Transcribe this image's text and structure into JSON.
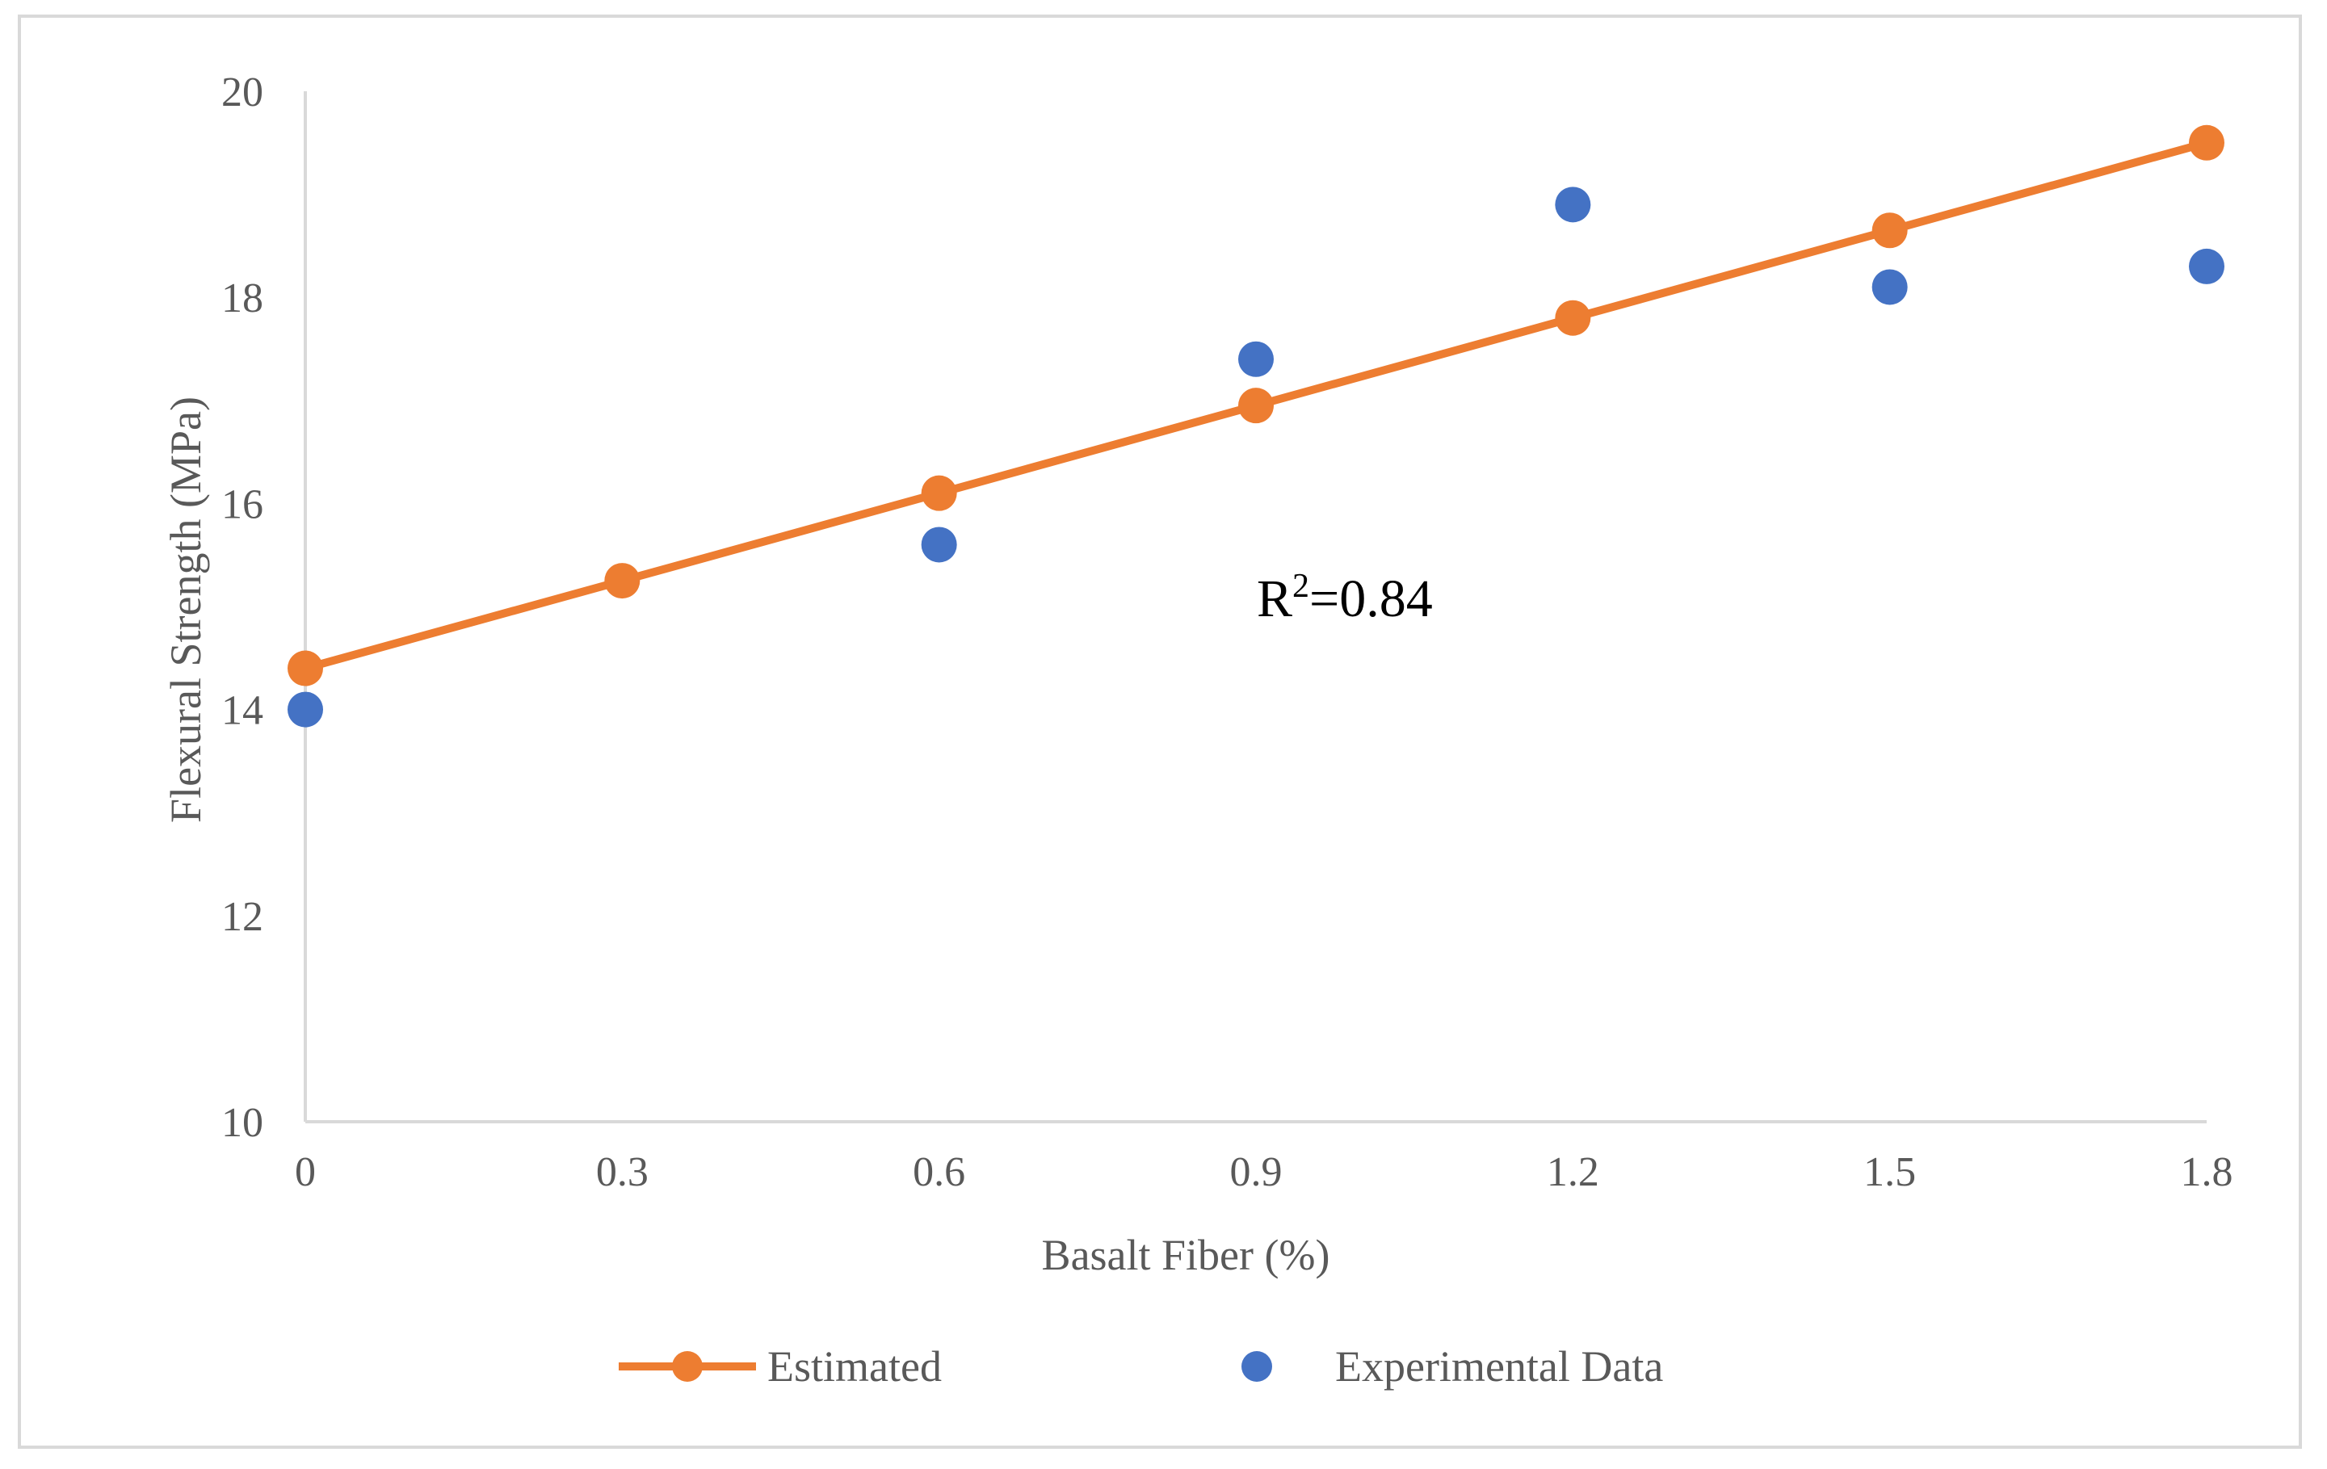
{
  "chart_data": {
    "type": "line+scatter",
    "title": "",
    "xlabel": "Basalt Fiber (%)",
    "ylabel": "Flexural Strength (MPa)",
    "x": [
      0,
      0.3,
      0.6,
      0.9,
      1.2,
      1.5,
      1.8
    ],
    "x_tick_labels": [
      "0",
      "0.3",
      "0.6",
      "0.9",
      "1.2",
      "1.5",
      "1.8"
    ],
    "y_ticks": [
      10,
      12,
      14,
      16,
      18,
      20
    ],
    "y_tick_labels": [
      "10",
      "12",
      "14",
      "16",
      "18",
      "20"
    ],
    "xlim": [
      0,
      1.8
    ],
    "ylim": [
      10,
      20
    ],
    "grid": false,
    "series": [
      {
        "name": "Estimated",
        "kind": "line-with-markers",
        "color": "#ED7D31",
        "x": [
          0,
          0.3,
          0.6,
          0.9,
          1.2,
          1.5,
          1.8
        ],
        "y": [
          14.4,
          15.25,
          16.1,
          16.95,
          17.8,
          18.65,
          19.5
        ]
      },
      {
        "name": "Experimental Data",
        "kind": "scatter",
        "color": "#4472C4",
        "x": [
          0,
          0.6,
          0.9,
          1.2,
          1.5,
          1.8
        ],
        "y": [
          14.0,
          15.6,
          17.4,
          18.9,
          18.1,
          18.3
        ]
      }
    ],
    "annotation": {
      "base": "R",
      "sup": "2",
      "rest": "=0.84"
    },
    "legend": {
      "position": "bottom",
      "entries": [
        "Estimated",
        "Experimental Data"
      ]
    }
  }
}
